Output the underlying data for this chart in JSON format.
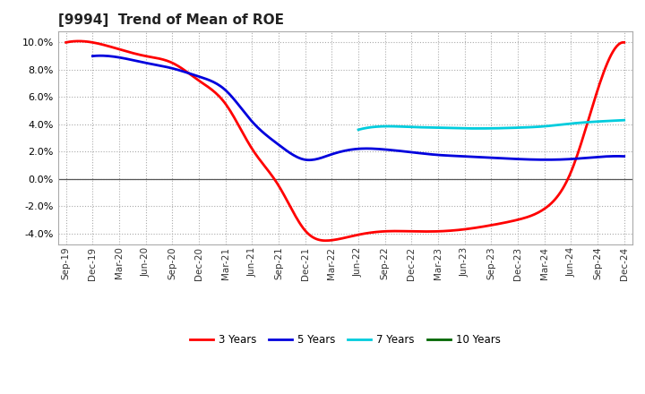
{
  "title": "[9994]  Trend of Mean of ROE",
  "title_fontsize": 11,
  "x_labels": [
    "Sep-19",
    "Dec-19",
    "Mar-20",
    "Jun-20",
    "Sep-20",
    "Dec-20",
    "Mar-21",
    "Jun-21",
    "Sep-21",
    "Dec-21",
    "Mar-22",
    "Jun-22",
    "Sep-22",
    "Dec-22",
    "Mar-23",
    "Jun-23",
    "Sep-23",
    "Dec-23",
    "Mar-24",
    "Jun-24",
    "Sep-24",
    "Dec-24"
  ],
  "ylim": [
    -4.8,
    10.8
  ],
  "yticks": [
    -4.0,
    -2.0,
    0.0,
    2.0,
    4.0,
    6.0,
    8.0,
    10.0
  ],
  "series": {
    "3 Years": {
      "color": "#ff0000",
      "linewidth": 2.0,
      "values": [
        10.0,
        10.0,
        9.5,
        9.0,
        8.5,
        7.2,
        5.5,
        2.2,
        -0.5,
        -3.8,
        -4.5,
        -4.1,
        -3.85,
        -3.85,
        -3.85,
        -3.7,
        -3.4,
        -3.0,
        -2.2,
        0.5,
        6.5,
        10.0
      ]
    },
    "5 Years": {
      "color": "#0000dd",
      "linewidth": 2.0,
      "values": [
        null,
        9.0,
        8.9,
        8.5,
        8.1,
        7.5,
        6.5,
        4.2,
        2.5,
        1.4,
        1.8,
        2.2,
        2.15,
        1.95,
        1.75,
        1.65,
        1.55,
        1.45,
        1.4,
        1.45,
        1.6,
        1.65
      ]
    },
    "7 Years": {
      "color": "#00ccdd",
      "linewidth": 2.0,
      "values": [
        null,
        null,
        null,
        null,
        null,
        null,
        null,
        null,
        null,
        null,
        null,
        3.6,
        3.85,
        3.8,
        3.75,
        3.7,
        3.7,
        3.75,
        3.85,
        4.05,
        4.2,
        4.3
      ]
    },
    "10 Years": {
      "color": "#006600",
      "linewidth": 2.0,
      "values": [
        null,
        null,
        null,
        null,
        null,
        null,
        null,
        null,
        null,
        null,
        null,
        null,
        null,
        null,
        null,
        null,
        null,
        null,
        null,
        null,
        null,
        null
      ]
    }
  },
  "legend_labels": [
    "3 Years",
    "5 Years",
    "7 Years",
    "10 Years"
  ],
  "legend_colors": [
    "#ff0000",
    "#0000dd",
    "#00ccdd",
    "#006600"
  ],
  "background_color": "#ffffff",
  "plot_bg_color": "#ffffff",
  "grid_color": "#aaaaaa",
  "zero_line_color": "#555555"
}
